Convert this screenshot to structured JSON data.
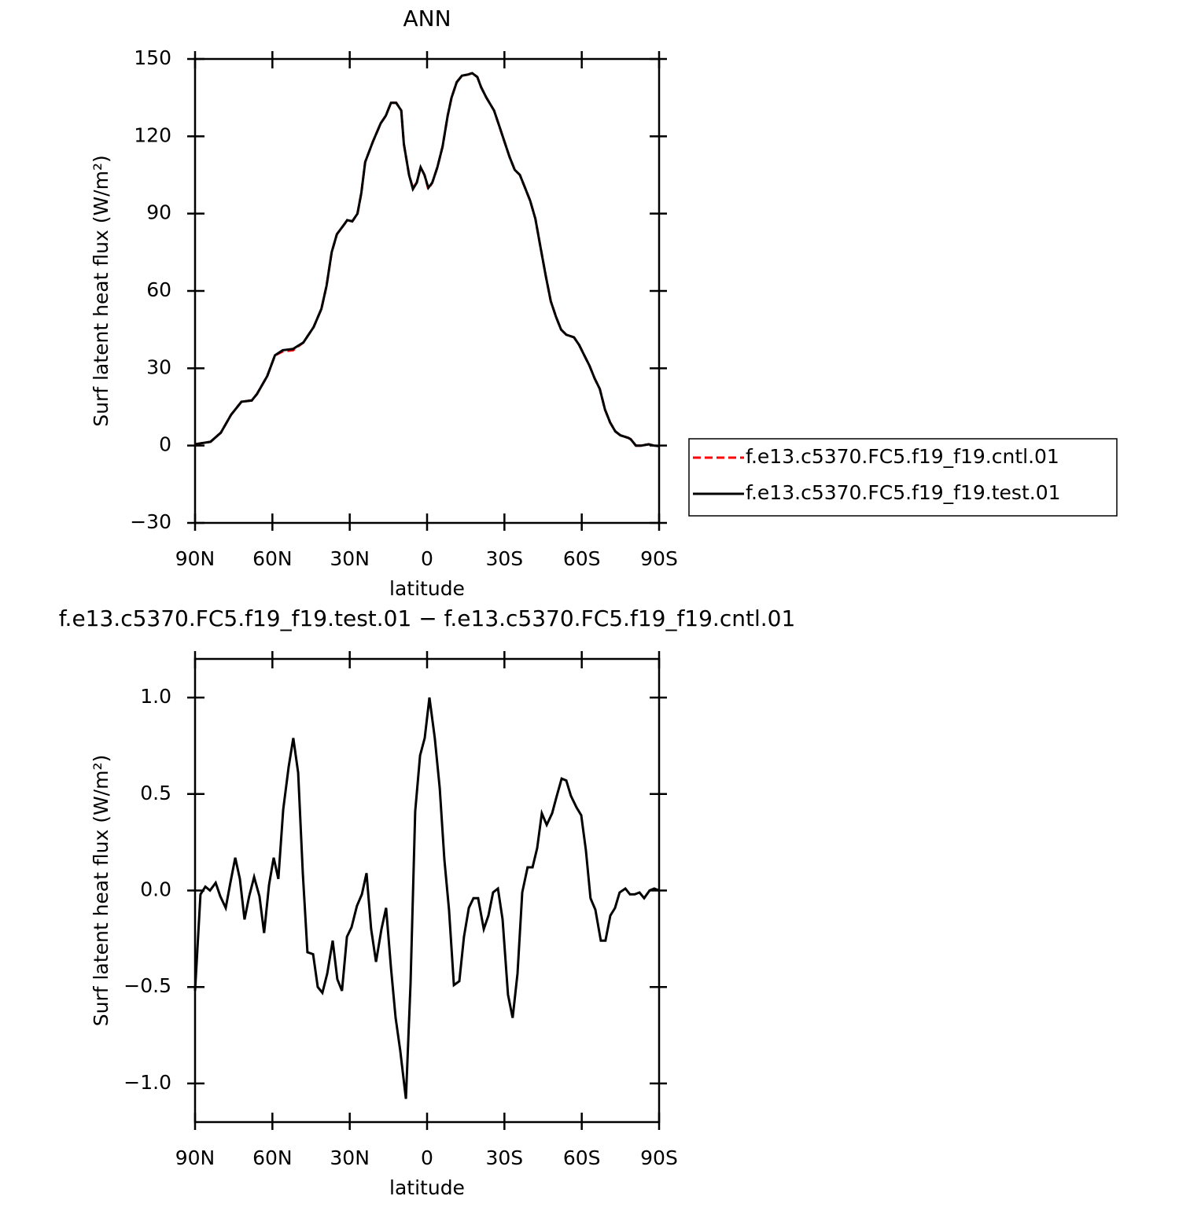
{
  "chart_data": [
    {
      "type": "line",
      "title": "ANN",
      "xlabel": "latitude",
      "ylabel": "Surf latent heat flux (W/m²)",
      "xlim": [
        90,
        -90
      ],
      "xticks": [
        {
          "value": 90,
          "label": "90N"
        },
        {
          "value": 60,
          "label": "60N"
        },
        {
          "value": 30,
          "label": "30N"
        },
        0,
        {
          "value": -30,
          "label": "30S"
        },
        {
          "value": -60,
          "label": "60S"
        },
        {
          "value": -90,
          "label": "90S"
        }
      ],
      "ylim": [
        -30,
        150
      ],
      "yticks": [
        {
          "value": -30,
          "label": "−30"
        },
        0,
        30,
        60,
        90,
        120,
        150
      ],
      "legend": "right",
      "x": [
        90,
        84,
        80,
        76,
        72,
        68,
        66,
        62,
        59,
        56,
        52,
        48,
        44,
        41,
        39,
        37,
        35,
        32,
        31,
        29,
        27,
        25.5,
        24,
        21,
        18,
        16,
        14,
        12,
        10,
        9,
        7,
        5.5,
        4,
        2.5,
        1,
        -0.5,
        -2,
        -4,
        -6,
        -8,
        -9.5,
        -11.5,
        -13.5,
        -16,
        -17.5,
        -19.5,
        -21,
        -23,
        -26,
        -28,
        -30,
        -32,
        -34,
        -36,
        -38,
        -40,
        -42,
        -44,
        -46,
        -48,
        -50,
        -52,
        -54,
        -57,
        -59,
        -61,
        -63,
        -65,
        -67,
        -69,
        -71,
        -73,
        -75,
        -78,
        -79,
        -81,
        -83,
        -86,
        -88,
        -90
      ],
      "series": [
        {
          "name": "f.e13.c5370.FC5.f19_f19.cntl.01",
          "color": "#ff0000",
          "line_style": "dashed",
          "values": [
            0.5,
            1.5,
            5,
            12,
            17,
            17.5,
            20,
            27,
            35,
            36.5,
            37,
            40,
            46,
            53,
            62,
            75,
            82,
            86,
            87.5,
            87,
            90,
            98,
            110,
            118,
            125,
            128,
            133,
            133,
            130,
            117,
            105,
            100,
            102,
            108,
            105,
            99.5,
            102,
            108,
            116,
            128,
            135,
            141,
            143.5,
            144,
            144.5,
            143,
            139,
            135,
            130,
            124,
            118,
            112,
            107,
            105,
            100,
            95,
            88,
            77,
            66,
            56,
            50,
            45,
            43,
            42,
            39,
            35,
            31,
            26,
            22,
            14,
            9,
            5.5,
            4,
            3,
            2.5,
            0,
            0,
            0.5,
            0,
            -0.2
          ]
        },
        {
          "name": "f.e13.c5370.FC5.f19_f19.test.01",
          "color": "#000000",
          "line_style": "solid",
          "values": [
            0.5,
            1.5,
            5,
            12,
            17,
            17.5,
            20,
            27,
            35,
            37,
            37.5,
            40,
            46,
            53,
            62,
            75,
            82,
            86,
            87.5,
            87,
            90,
            98,
            110,
            118,
            125,
            128,
            133,
            133,
            130,
            117,
            105,
            99.5,
            102,
            108,
            105,
            100,
            102,
            108,
            116,
            128,
            135,
            141,
            143.5,
            144,
            144.5,
            143,
            139,
            135,
            130,
            124,
            118,
            112,
            107,
            105,
            100,
            95,
            88,
            77,
            66,
            56,
            50,
            45,
            43,
            42,
            39,
            35,
            31,
            26,
            22,
            14,
            9,
            5.5,
            4,
            3,
            2.5,
            0,
            0,
            0.5,
            0,
            -0.2
          ]
        }
      ]
    },
    {
      "type": "line",
      "title": "f.e13.c5370.FC5.f19_f19.test.01 − f.e13.c5370.FC5.f19_f19.cntl.01",
      "xlabel": "latitude",
      "ylabel": "Surf latent heat flux (W/m²)",
      "xlim": [
        90,
        -90
      ],
      "xticks": [
        {
          "value": 90,
          "label": "90N"
        },
        {
          "value": 60,
          "label": "60N"
        },
        {
          "value": 30,
          "label": "30N"
        },
        0,
        {
          "value": -30,
          "label": "30S"
        },
        {
          "value": -60,
          "label": "60S"
        },
        {
          "value": -90,
          "label": "90S"
        }
      ],
      "ylim": [
        -1.2,
        1.2
      ],
      "yticks": [
        {
          "value": -1,
          "label": "−1.0"
        },
        {
          "value": -0.5,
          "label": "−0.5"
        },
        {
          "value": 0,
          "label": "0.0"
        },
        0.5,
        {
          "value": 1,
          "label": "1.0"
        }
      ],
      "x": [
        90,
        87.9,
        86,
        84.2,
        82,
        80.2,
        78.1,
        76.3,
        74.4,
        72.6,
        70.8,
        69,
        67.1,
        65,
        63.2,
        61.3,
        59.5,
        57.7,
        55.8,
        53.7,
        51.9,
        50,
        48.2,
        46.4,
        44.2,
        42.4,
        40.6,
        38.7,
        36.6,
        34.8,
        33,
        31.1,
        29.3,
        27.2,
        25.3,
        23.5,
        21.7,
        19.8,
        17.7,
        15.9,
        14,
        12.2,
        10.4,
        8.2,
        6.4,
        4.6,
        2.7,
        0.9,
        -0.9,
        -3,
        -4.9,
        -6.7,
        -8.5,
        -10.4,
        -12.5,
        -14.3,
        -16.2,
        -18,
        -19.8,
        -22,
        -23.8,
        -25.6,
        -27.5,
        -29.3,
        -31.4,
        -33.2,
        -35.1,
        -36.9,
        -39,
        -40.9,
        -42.7,
        -44.5,
        -46.4,
        -48.5,
        -50.3,
        -52.2,
        -54,
        -55.8,
        -58,
        -59.8,
        -61.6,
        -63.4,
        -65.3,
        -67.4,
        -69.2,
        -71.1,
        -72.9,
        -74.7,
        -76.9,
        -78.7,
        -80.5,
        -82.4,
        -84.2,
        -86.3,
        -88.1,
        -90
      ],
      "series": [
        {
          "color": "#000000",
          "line_style": "solid",
          "values": [
            -0.52,
            -0.02,
            0.02,
            0,
            0.04,
            -0.03,
            -0.09,
            0.04,
            0.17,
            0.06,
            -0.15,
            -0.03,
            0.07,
            -0.03,
            -0.22,
            0.03,
            0.17,
            0.06,
            0.42,
            0.64,
            0.79,
            0.61,
            0.09,
            -0.32,
            -0.33,
            -0.5,
            -0.53,
            -0.43,
            -0.26,
            -0.46,
            -0.52,
            -0.24,
            -0.19,
            -0.08,
            -0.02,
            0.09,
            -0.2,
            -0.37,
            -0.2,
            -0.09,
            -0.4,
            -0.66,
            -0.83,
            -1.08,
            -0.48,
            0.41,
            0.7,
            0.79,
            1,
            0.79,
            0.53,
            0.16,
            -0.1,
            -0.49,
            -0.47,
            -0.24,
            -0.09,
            -0.04,
            -0.04,
            -0.2,
            -0.13,
            -0.01,
            0.01,
            -0.15,
            -0.54,
            -0.66,
            -0.43,
            -0.01,
            0.12,
            0.12,
            0.22,
            0.4,
            0.34,
            0.4,
            0.49,
            0.58,
            0.57,
            0.49,
            0.43,
            0.39,
            0.21,
            -0.04,
            -0.1,
            -0.26,
            -0.26,
            -0.13,
            -0.09,
            -0.01,
            0.01,
            -0.02,
            -0.02,
            -0.01,
            -0.04,
            0,
            0.01,
            0
          ]
        }
      ]
    }
  ]
}
